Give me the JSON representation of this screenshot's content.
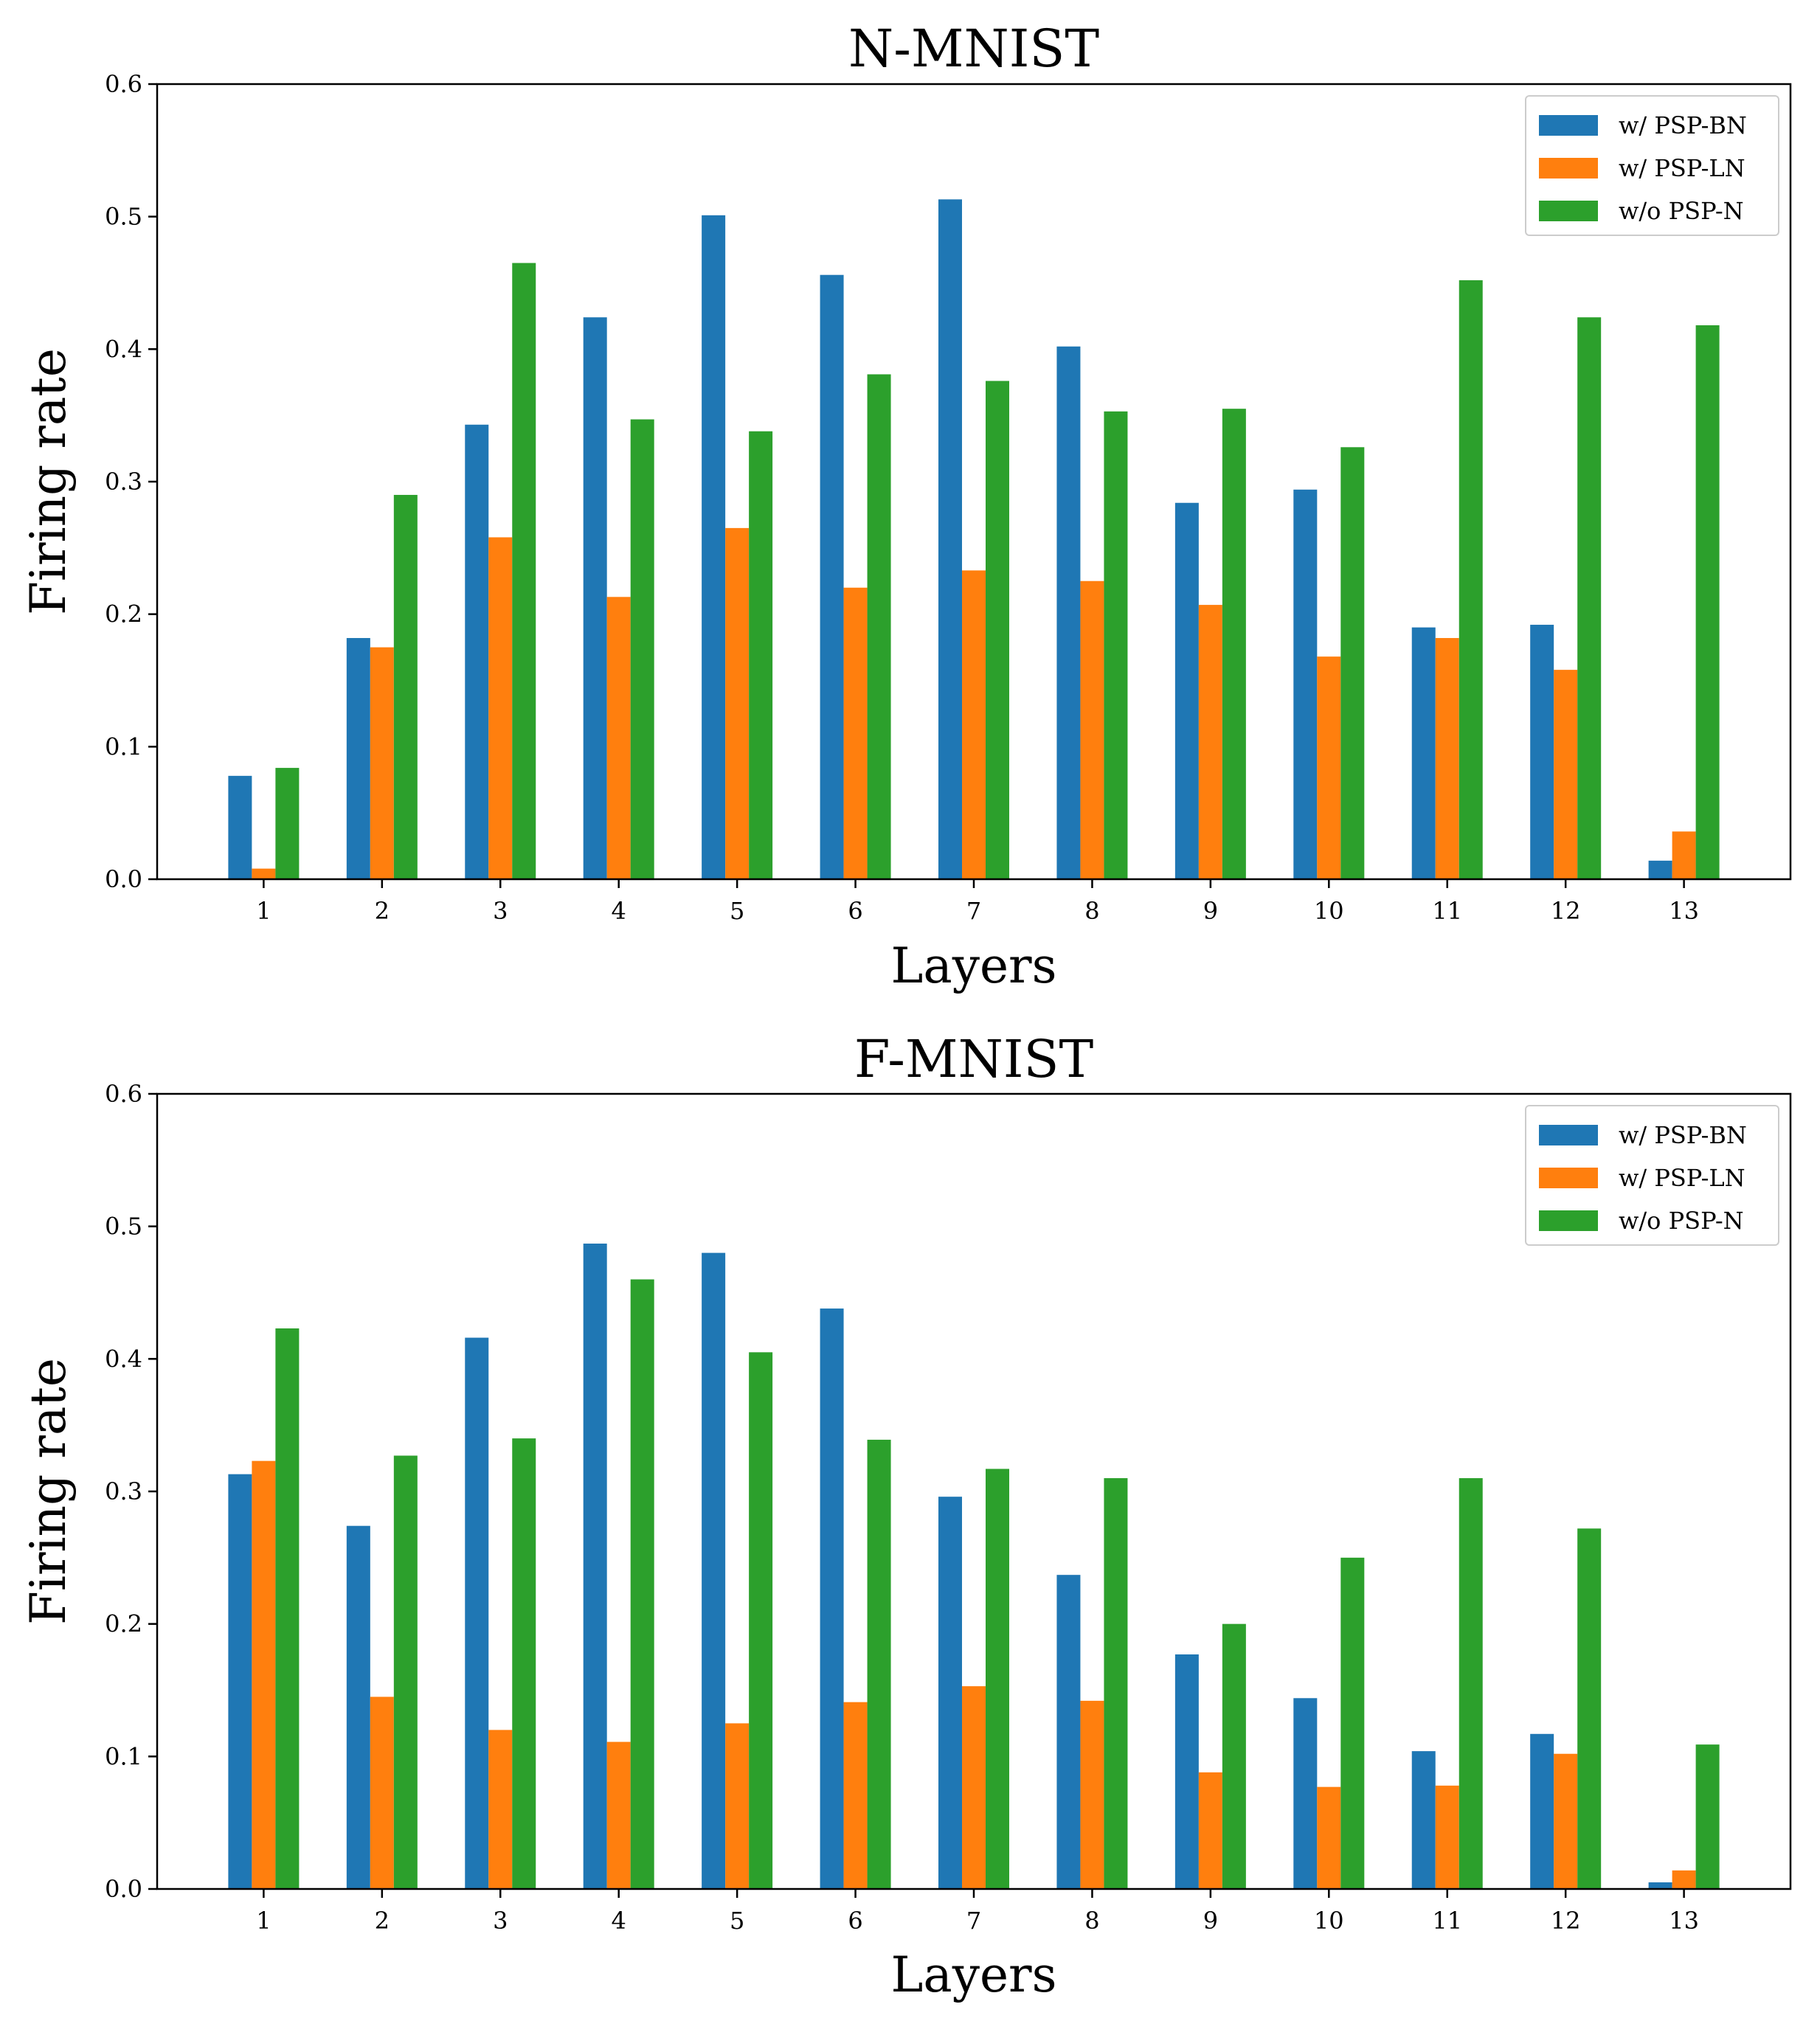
{
  "chart_data": [
    {
      "type": "bar",
      "title": "N-MNIST",
      "xlabel": "Layers",
      "ylabel": "Firing rate",
      "ylim": [
        0,
        0.6
      ],
      "yticks": [
        "0.0",
        "0.1",
        "0.2",
        "0.3",
        "0.4",
        "0.5",
        "0.6"
      ],
      "categories": [
        "1",
        "2",
        "3",
        "4",
        "5",
        "6",
        "7",
        "8",
        "9",
        "10",
        "11",
        "12",
        "13"
      ],
      "legend_position": "top-right",
      "series": [
        {
          "name": "w/ PSP-BN",
          "color": "#1f77b4",
          "values": [
            0.078,
            0.182,
            0.343,
            0.424,
            0.501,
            0.456,
            0.513,
            0.402,
            0.284,
            0.294,
            0.19,
            0.192,
            0.014
          ]
        },
        {
          "name": "w/ PSP-LN",
          "color": "#ff7f0e",
          "values": [
            0.008,
            0.175,
            0.258,
            0.213,
            0.265,
            0.22,
            0.233,
            0.225,
            0.207,
            0.168,
            0.182,
            0.158,
            0.036
          ]
        },
        {
          "name": "w/o PSP-N",
          "color": "#2ca02c",
          "values": [
            0.084,
            0.29,
            0.465,
            0.347,
            0.338,
            0.381,
            0.376,
            0.353,
            0.355,
            0.326,
            0.452,
            0.424,
            0.418
          ]
        }
      ]
    },
    {
      "type": "bar",
      "title": "F-MNIST",
      "xlabel": "Layers",
      "ylabel": "Firing rate",
      "ylim": [
        0,
        0.6
      ],
      "yticks": [
        "0.0",
        "0.1",
        "0.2",
        "0.3",
        "0.4",
        "0.5",
        "0.6"
      ],
      "categories": [
        "1",
        "2",
        "3",
        "4",
        "5",
        "6",
        "7",
        "8",
        "9",
        "10",
        "11",
        "12",
        "13"
      ],
      "legend_position": "top-right",
      "series": [
        {
          "name": "w/ PSP-BN",
          "color": "#1f77b4",
          "values": [
            0.313,
            0.274,
            0.416,
            0.487,
            0.48,
            0.438,
            0.296,
            0.237,
            0.177,
            0.144,
            0.104,
            0.117,
            0.005
          ]
        },
        {
          "name": "w/ PSP-LN",
          "color": "#ff7f0e",
          "values": [
            0.323,
            0.145,
            0.12,
            0.111,
            0.125,
            0.141,
            0.153,
            0.142,
            0.088,
            0.077,
            0.078,
            0.102,
            0.014
          ]
        },
        {
          "name": "w/o PSP-N",
          "color": "#2ca02c",
          "values": [
            0.423,
            0.327,
            0.34,
            0.46,
            0.405,
            0.339,
            0.317,
            0.31,
            0.2,
            0.25,
            0.31,
            0.272,
            0.109
          ]
        }
      ]
    }
  ]
}
